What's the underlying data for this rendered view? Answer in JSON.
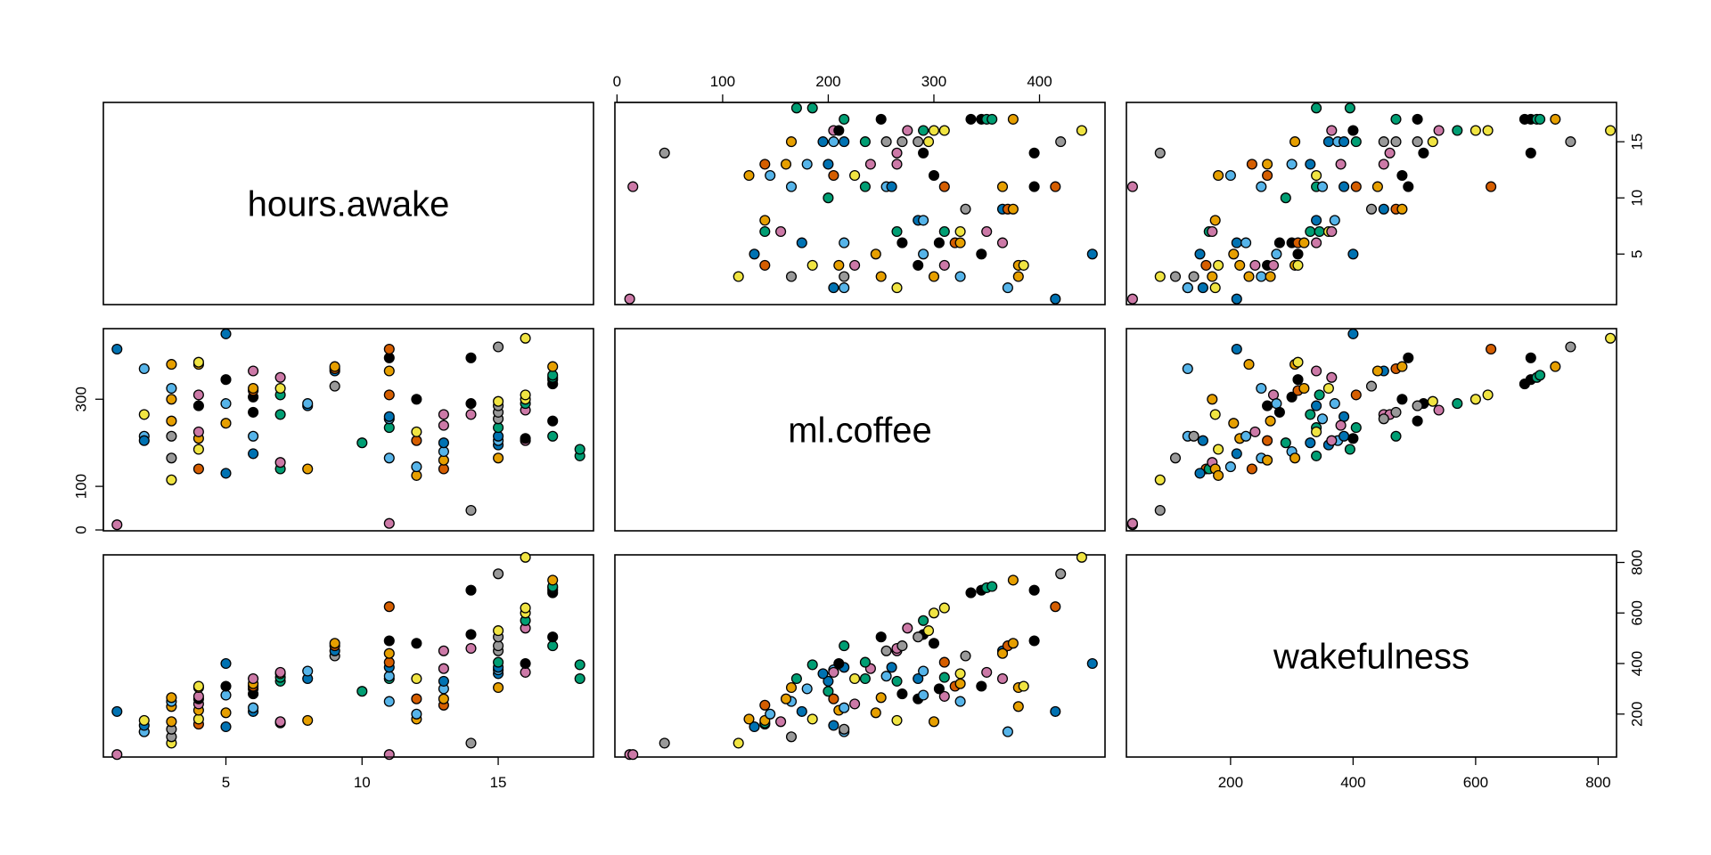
{
  "chart_data": {
    "type": "scatter",
    "variables": [
      "hours.awake",
      "ml.coffee",
      "wakefulness"
    ],
    "axis_ticks": {
      "hours.awake": [
        5,
        10,
        15
      ],
      "ml.coffee_top": [
        0,
        100,
        200,
        300,
        400
      ],
      "ml.coffee_left": [
        0,
        100,
        300
      ],
      "wakefulness": [
        200,
        400,
        600,
        800
      ]
    },
    "ranges": {
      "hours.awake": [
        0.5,
        18.5
      ],
      "ml.coffee": [
        -2,
        462
      ],
      "wakefulness": [
        30,
        830
      ]
    },
    "color_groups": {
      "black": "#000000",
      "orange": "#E69F00",
      "skyblue": "#56B4E9",
      "green": "#009E73",
      "yellow": "#F0E442",
      "blue": "#0072B2",
      "vermillion": "#D55E00",
      "pink": "#CC79A7",
      "gray": "#999999"
    },
    "points": [
      {
        "h": 1,
        "c": 12,
        "w": 40,
        "g": "pink"
      },
      {
        "h": 1,
        "c": 415,
        "w": 210,
        "g": "blue"
      },
      {
        "h": 2,
        "c": 370,
        "w": 130,
        "g": "skyblue"
      },
      {
        "h": 2,
        "c": 215,
        "w": 130,
        "g": "skyblue"
      },
      {
        "h": 2,
        "c": 205,
        "w": 155,
        "g": "blue"
      },
      {
        "h": 2,
        "c": 265,
        "w": 175,
        "g": "yellow"
      },
      {
        "h": 3,
        "c": 115,
        "w": 85,
        "g": "yellow"
      },
      {
        "h": 3,
        "c": 165,
        "w": 110,
        "g": "gray"
      },
      {
        "h": 3,
        "c": 215,
        "w": 140,
        "g": "gray"
      },
      {
        "h": 3,
        "c": 300,
        "w": 170,
        "g": "orange"
      },
      {
        "h": 3,
        "c": 380,
        "w": 230,
        "g": "orange"
      },
      {
        "h": 3,
        "c": 325,
        "w": 250,
        "g": "skyblue"
      },
      {
        "h": 3,
        "c": 250,
        "w": 265,
        "g": "orange"
      },
      {
        "h": 4,
        "c": 140,
        "w": 160,
        "g": "vermillion"
      },
      {
        "h": 4,
        "c": 185,
        "w": 180,
        "g": "yellow"
      },
      {
        "h": 4,
        "c": 210,
        "w": 215,
        "g": "orange"
      },
      {
        "h": 4,
        "c": 225,
        "w": 240,
        "g": "pink"
      },
      {
        "h": 4,
        "c": 285,
        "w": 260,
        "g": "black"
      },
      {
        "h": 4,
        "c": 310,
        "w": 270,
        "g": "pink"
      },
      {
        "h": 4,
        "c": 380,
        "w": 305,
        "g": "orange"
      },
      {
        "h": 4,
        "c": 385,
        "w": 310,
        "g": "yellow"
      },
      {
        "h": 5,
        "c": 130,
        "w": 150,
        "g": "blue"
      },
      {
        "h": 5,
        "c": 245,
        "w": 205,
        "g": "orange"
      },
      {
        "h": 5,
        "c": 290,
        "w": 275,
        "g": "skyblue"
      },
      {
        "h": 5,
        "c": 345,
        "w": 310,
        "g": "black"
      },
      {
        "h": 5,
        "c": 450,
        "w": 400,
        "g": "blue"
      },
      {
        "h": 6,
        "c": 175,
        "w": 210,
        "g": "blue"
      },
      {
        "h": 6,
        "c": 215,
        "w": 225,
        "g": "skyblue"
      },
      {
        "h": 6,
        "c": 270,
        "w": 280,
        "g": "black"
      },
      {
        "h": 6,
        "c": 305,
        "w": 300,
        "g": "black"
      },
      {
        "h": 6,
        "c": 320,
        "w": 310,
        "g": "vermillion"
      },
      {
        "h": 6,
        "c": 325,
        "w": 320,
        "g": "orange"
      },
      {
        "h": 6,
        "c": 365,
        "w": 340,
        "g": "pink"
      },
      {
        "h": 7,
        "c": 140,
        "w": 165,
        "g": "green"
      },
      {
        "h": 7,
        "c": 155,
        "w": 170,
        "g": "pink"
      },
      {
        "h": 7,
        "c": 265,
        "w": 330,
        "g": "green"
      },
      {
        "h": 7,
        "c": 310,
        "w": 345,
        "g": "green"
      },
      {
        "h": 7,
        "c": 325,
        "w": 360,
        "g": "yellow"
      },
      {
        "h": 7,
        "c": 350,
        "w": 365,
        "g": "pink"
      },
      {
        "h": 8,
        "c": 140,
        "w": 175,
        "g": "orange"
      },
      {
        "h": 8,
        "c": 285,
        "w": 340,
        "g": "blue"
      },
      {
        "h": 8,
        "c": 290,
        "w": 370,
        "g": "skyblue"
      },
      {
        "h": 9,
        "c": 330,
        "w": 430,
        "g": "gray"
      },
      {
        "h": 9,
        "c": 365,
        "w": 450,
        "g": "blue"
      },
      {
        "h": 9,
        "c": 370,
        "w": 470,
        "g": "vermillion"
      },
      {
        "h": 9,
        "c": 375,
        "w": 480,
        "g": "orange"
      },
      {
        "h": 10,
        "c": 200,
        "w": 290,
        "g": "green"
      },
      {
        "h": 11,
        "c": 15,
        "w": 40,
        "g": "pink"
      },
      {
        "h": 11,
        "c": 165,
        "w": 250,
        "g": "skyblue"
      },
      {
        "h": 11,
        "c": 235,
        "w": 340,
        "g": "green"
      },
      {
        "h": 11,
        "c": 255,
        "w": 350,
        "g": "skyblue"
      },
      {
        "h": 11,
        "c": 260,
        "w": 385,
        "g": "blue"
      },
      {
        "h": 11,
        "c": 310,
        "w": 405,
        "g": "vermillion"
      },
      {
        "h": 11,
        "c": 365,
        "w": 440,
        "g": "orange"
      },
      {
        "h": 11,
        "c": 395,
        "w": 490,
        "g": "black"
      },
      {
        "h": 11,
        "c": 415,
        "w": 625,
        "g": "vermillion"
      },
      {
        "h": 12,
        "c": 125,
        "w": 180,
        "g": "orange"
      },
      {
        "h": 12,
        "c": 145,
        "w": 200,
        "g": "skyblue"
      },
      {
        "h": 12,
        "c": 205,
        "w": 260,
        "g": "vermillion"
      },
      {
        "h": 12,
        "c": 225,
        "w": 340,
        "g": "yellow"
      },
      {
        "h": 12,
        "c": 300,
        "w": 480,
        "g": "black"
      },
      {
        "h": 13,
        "c": 140,
        "w": 235,
        "g": "vermillion"
      },
      {
        "h": 13,
        "c": 160,
        "w": 260,
        "g": "orange"
      },
      {
        "h": 13,
        "c": 180,
        "w": 300,
        "g": "skyblue"
      },
      {
        "h": 13,
        "c": 200,
        "w": 330,
        "g": "blue"
      },
      {
        "h": 13,
        "c": 240,
        "w": 380,
        "g": "pink"
      },
      {
        "h": 13,
        "c": 265,
        "w": 450,
        "g": "pink"
      },
      {
        "h": 14,
        "c": 45,
        "w": 85,
        "g": "gray"
      },
      {
        "h": 14,
        "c": 265,
        "w": 460,
        "g": "pink"
      },
      {
        "h": 14,
        "c": 290,
        "w": 515,
        "g": "black"
      },
      {
        "h": 14,
        "c": 395,
        "w": 690,
        "g": "black"
      },
      {
        "h": 15,
        "c": 165,
        "w": 305,
        "g": "orange"
      },
      {
        "h": 15,
        "c": 195,
        "w": 360,
        "g": "blue"
      },
      {
        "h": 15,
        "c": 205,
        "w": 375,
        "g": "skyblue"
      },
      {
        "h": 15,
        "c": 215,
        "w": 385,
        "g": "blue"
      },
      {
        "h": 15,
        "c": 235,
        "w": 405,
        "g": "green"
      },
      {
        "h": 15,
        "c": 255,
        "w": 450,
        "g": "gray"
      },
      {
        "h": 15,
        "c": 270,
        "w": 470,
        "g": "gray"
      },
      {
        "h": 15,
        "c": 285,
        "w": 505,
        "g": "gray"
      },
      {
        "h": 15,
        "c": 295,
        "w": 530,
        "g": "yellow"
      },
      {
        "h": 15,
        "c": 420,
        "w": 755,
        "g": "gray"
      },
      {
        "h": 16,
        "c": 205,
        "w": 365,
        "g": "pink"
      },
      {
        "h": 16,
        "c": 210,
        "w": 400,
        "g": "black"
      },
      {
        "h": 16,
        "c": 275,
        "w": 540,
        "g": "pink"
      },
      {
        "h": 16,
        "c": 290,
        "w": 570,
        "g": "green"
      },
      {
        "h": 16,
        "c": 300,
        "w": 600,
        "g": "yellow"
      },
      {
        "h": 16,
        "c": 310,
        "w": 620,
        "g": "yellow"
      },
      {
        "h": 16,
        "c": 440,
        "w": 820,
        "g": "yellow"
      },
      {
        "h": 17,
        "c": 215,
        "w": 470,
        "g": "green"
      },
      {
        "h": 17,
        "c": 250,
        "w": 505,
        "g": "black"
      },
      {
        "h": 17,
        "c": 335,
        "w": 680,
        "g": "black"
      },
      {
        "h": 17,
        "c": 345,
        "w": 690,
        "g": "black"
      },
      {
        "h": 17,
        "c": 350,
        "w": 700,
        "g": "green"
      },
      {
        "h": 17,
        "c": 355,
        "w": 705,
        "g": "green"
      },
      {
        "h": 17,
        "c": 375,
        "w": 730,
        "g": "orange"
      },
      {
        "h": 18,
        "c": 170,
        "w": 340,
        "g": "green"
      },
      {
        "h": 18,
        "c": 185,
        "w": 395,
        "g": "green"
      }
    ]
  }
}
